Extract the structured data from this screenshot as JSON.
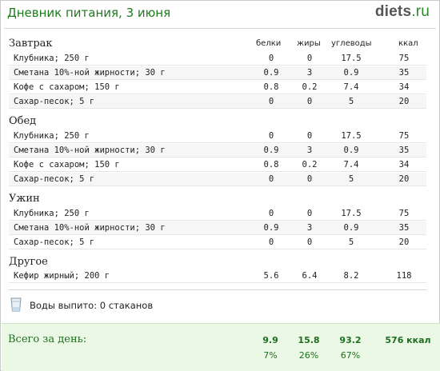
{
  "header": {
    "title": "Дневник питания, 3 июня",
    "logo_main": "diets",
    "logo_suffix": ".ru"
  },
  "columns": {
    "protein": "белки",
    "fat": "жиры",
    "carbs": "углеводы",
    "kcal": "ккал"
  },
  "sections": [
    {
      "title": "Завтрак",
      "items": [
        {
          "name": "Клубника; 250 г",
          "protein": "0",
          "fat": "0",
          "carbs": "17.5",
          "kcal": "75"
        },
        {
          "name": "Сметана 10%-ной жирности; 30 г",
          "protein": "0.9",
          "fat": "3",
          "carbs": "0.9",
          "kcal": "35"
        },
        {
          "name": "Кофе с сахаром; 150 г",
          "protein": "0.8",
          "fat": "0.2",
          "carbs": "7.4",
          "kcal": "34"
        },
        {
          "name": "Сахар-песок; 5 г",
          "protein": "0",
          "fat": "0",
          "carbs": "5",
          "kcal": "20"
        }
      ]
    },
    {
      "title": "Обед",
      "items": [
        {
          "name": "Клубника; 250 г",
          "protein": "0",
          "fat": "0",
          "carbs": "17.5",
          "kcal": "75"
        },
        {
          "name": "Сметана 10%-ной жирности; 30 г",
          "protein": "0.9",
          "fat": "3",
          "carbs": "0.9",
          "kcal": "35"
        },
        {
          "name": "Кофе с сахаром; 150 г",
          "protein": "0.8",
          "fat": "0.2",
          "carbs": "7.4",
          "kcal": "34"
        },
        {
          "name": "Сахар-песок; 5 г",
          "protein": "0",
          "fat": "0",
          "carbs": "5",
          "kcal": "20"
        }
      ]
    },
    {
      "title": "Ужин",
      "items": [
        {
          "name": "Клубника; 250 г",
          "protein": "0",
          "fat": "0",
          "carbs": "17.5",
          "kcal": "75"
        },
        {
          "name": "Сметана 10%-ной жирности; 30 г",
          "protein": "0.9",
          "fat": "3",
          "carbs": "0.9",
          "kcal": "35"
        },
        {
          "name": "Сахар-песок; 5 г",
          "protein": "0",
          "fat": "0",
          "carbs": "5",
          "kcal": "20"
        }
      ]
    },
    {
      "title": "Другое",
      "items": [
        {
          "name": "Кефир жирный; 200 г",
          "protein": "5.6",
          "fat": "6.4",
          "carbs": "8.2",
          "kcal": "118"
        }
      ]
    }
  ],
  "water": {
    "label": "Воды выпито: 0 стаканов",
    "icon": "water-glass-icon"
  },
  "totals": {
    "label": "Всего за день:",
    "protein": "9.9",
    "fat": "15.8",
    "carbs": "93.2",
    "kcal": "576 ккал",
    "protein_pct": "7%",
    "fat_pct": "26%",
    "carbs_pct": "67%"
  },
  "colors": {
    "accent_green": "#1f7a1f",
    "totals_bg": "#ecf8e6"
  }
}
